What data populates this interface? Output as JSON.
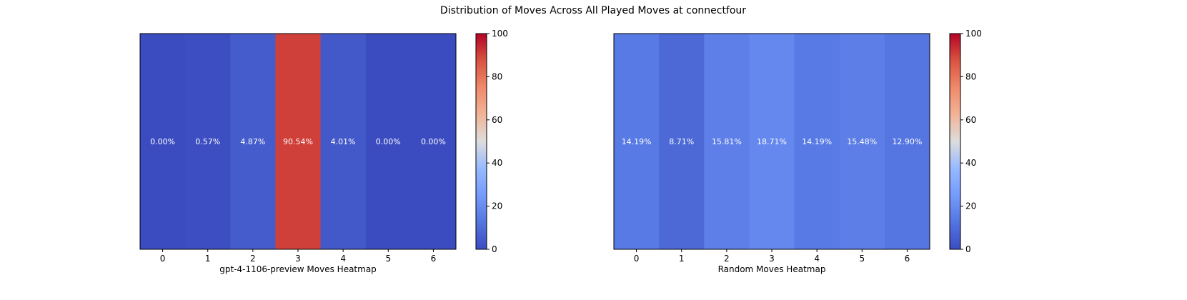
{
  "figure": {
    "title": "Distribution of Moves Across All Played Moves at connectfour"
  },
  "chart_data": [
    {
      "type": "heatmap",
      "title": "",
      "xlabel": "gpt-4-1106-preview Moves Heatmap",
      "ylabel": "",
      "categories": [
        "0",
        "1",
        "2",
        "3",
        "4",
        "5",
        "6"
      ],
      "values": [
        0.0,
        0.57,
        4.87,
        90.54,
        4.01,
        0.0,
        0.0
      ],
      "value_labels": [
        "0.00%",
        "0.57%",
        "4.87%",
        "90.54%",
        "4.01%",
        "0.00%",
        "0.00%"
      ],
      "colormap": "coolwarm",
      "color_range": [
        0,
        100
      ],
      "colorbar_ticks": [
        "0",
        "20",
        "40",
        "60",
        "80",
        "100"
      ],
      "grid": false
    },
    {
      "type": "heatmap",
      "title": "",
      "xlabel": "Random Moves Heatmap",
      "ylabel": "",
      "categories": [
        "0",
        "1",
        "2",
        "3",
        "4",
        "5",
        "6"
      ],
      "values": [
        14.19,
        8.71,
        15.81,
        18.71,
        14.19,
        15.48,
        12.9
      ],
      "value_labels": [
        "14.19%",
        "8.71%",
        "15.81%",
        "18.71%",
        "14.19%",
        "15.48%",
        "12.90%"
      ],
      "colormap": "coolwarm",
      "color_range": [
        0,
        100
      ],
      "colorbar_ticks": [
        "0",
        "20",
        "40",
        "60",
        "80",
        "100"
      ],
      "grid": false
    }
  ]
}
